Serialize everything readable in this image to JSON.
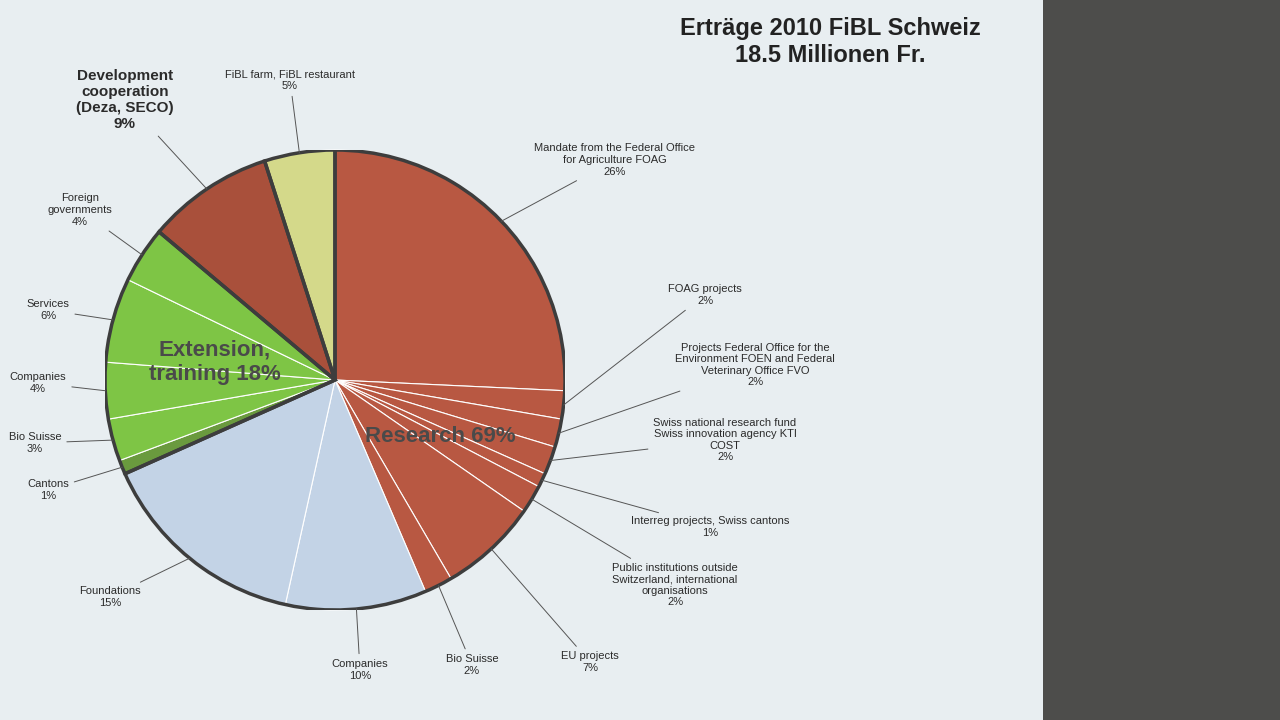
{
  "chart_data": {
    "type": "pie",
    "title": "Erträge 2010 FiBL Schweiz\n18.5 Millionen Fr.",
    "data_labels": true,
    "groups": [
      {
        "label": "Research 69%",
        "value": 69,
        "slices": [
          {
            "label": "Mandate from the Federal Office\nfor Agriculture FOAG",
            "value": 26,
            "value_label": "26%",
            "color": "#b85842"
          },
          {
            "label": "FOAG projects",
            "value": 2,
            "value_label": "2%",
            "color": "#b85842"
          },
          {
            "label": "Projects Federal Office for the\nEnvironment FOEN and Federal\nVeterinary Office FVO",
            "value": 2,
            "value_label": "2%",
            "color": "#b85842"
          },
          {
            "label": "Swiss national research fund\nSwiss innovation agency KTI\nCOST",
            "value": 2,
            "value_label": "2%",
            "color": "#b85842"
          },
          {
            "label": "Interreg projects, Swiss cantons",
            "value": 1,
            "value_label": "1%",
            "color": "#b85842"
          },
          {
            "label": "Public institutions outside\nSwitzerland, international\norganisations",
            "value": 2,
            "value_label": "2%",
            "color": "#b85842"
          },
          {
            "label": "EU projects",
            "value": 7,
            "value_label": "7%",
            "color": "#b85842"
          },
          {
            "label": "Bio Suisse",
            "value": 2,
            "value_label": "2%",
            "color": "#b85842"
          },
          {
            "label": "Companies",
            "value": 10,
            "value_label": "10%",
            "color": "#c3d3e6"
          },
          {
            "label": "Foundations",
            "value": 15,
            "value_label": "15%",
            "color": "#c3d3e6"
          }
        ]
      },
      {
        "label": "Extension,\ntraining 18%",
        "value": 18,
        "slices": [
          {
            "label": "Cantons",
            "value": 1,
            "value_label": "1%",
            "color": "#6a9a3e"
          },
          {
            "label": "Bio Suisse",
            "value": 3,
            "value_label": "3%",
            "color": "#7ec545"
          },
          {
            "label": "Companies",
            "value": 4,
            "value_label": "4%",
            "color": "#7ec545"
          },
          {
            "label": "Services",
            "value": 6,
            "value_label": "6%",
            "color": "#7ec545"
          },
          {
            "label": "Foreign\ngovernments",
            "value": 4,
            "value_label": "4%",
            "color": "#7ec545"
          }
        ]
      },
      {
        "slices": [
          {
            "label": "Development\ncooperation\n(Deza, SECO)",
            "value": 9,
            "value_label": "9%",
            "color": "#a9503b"
          }
        ]
      },
      {
        "slices": [
          {
            "label": "FiBL farm, FiBL restaurant",
            "value": 5,
            "value_label": "5%",
            "color": "#d4d98a"
          }
        ]
      }
    ]
  }
}
